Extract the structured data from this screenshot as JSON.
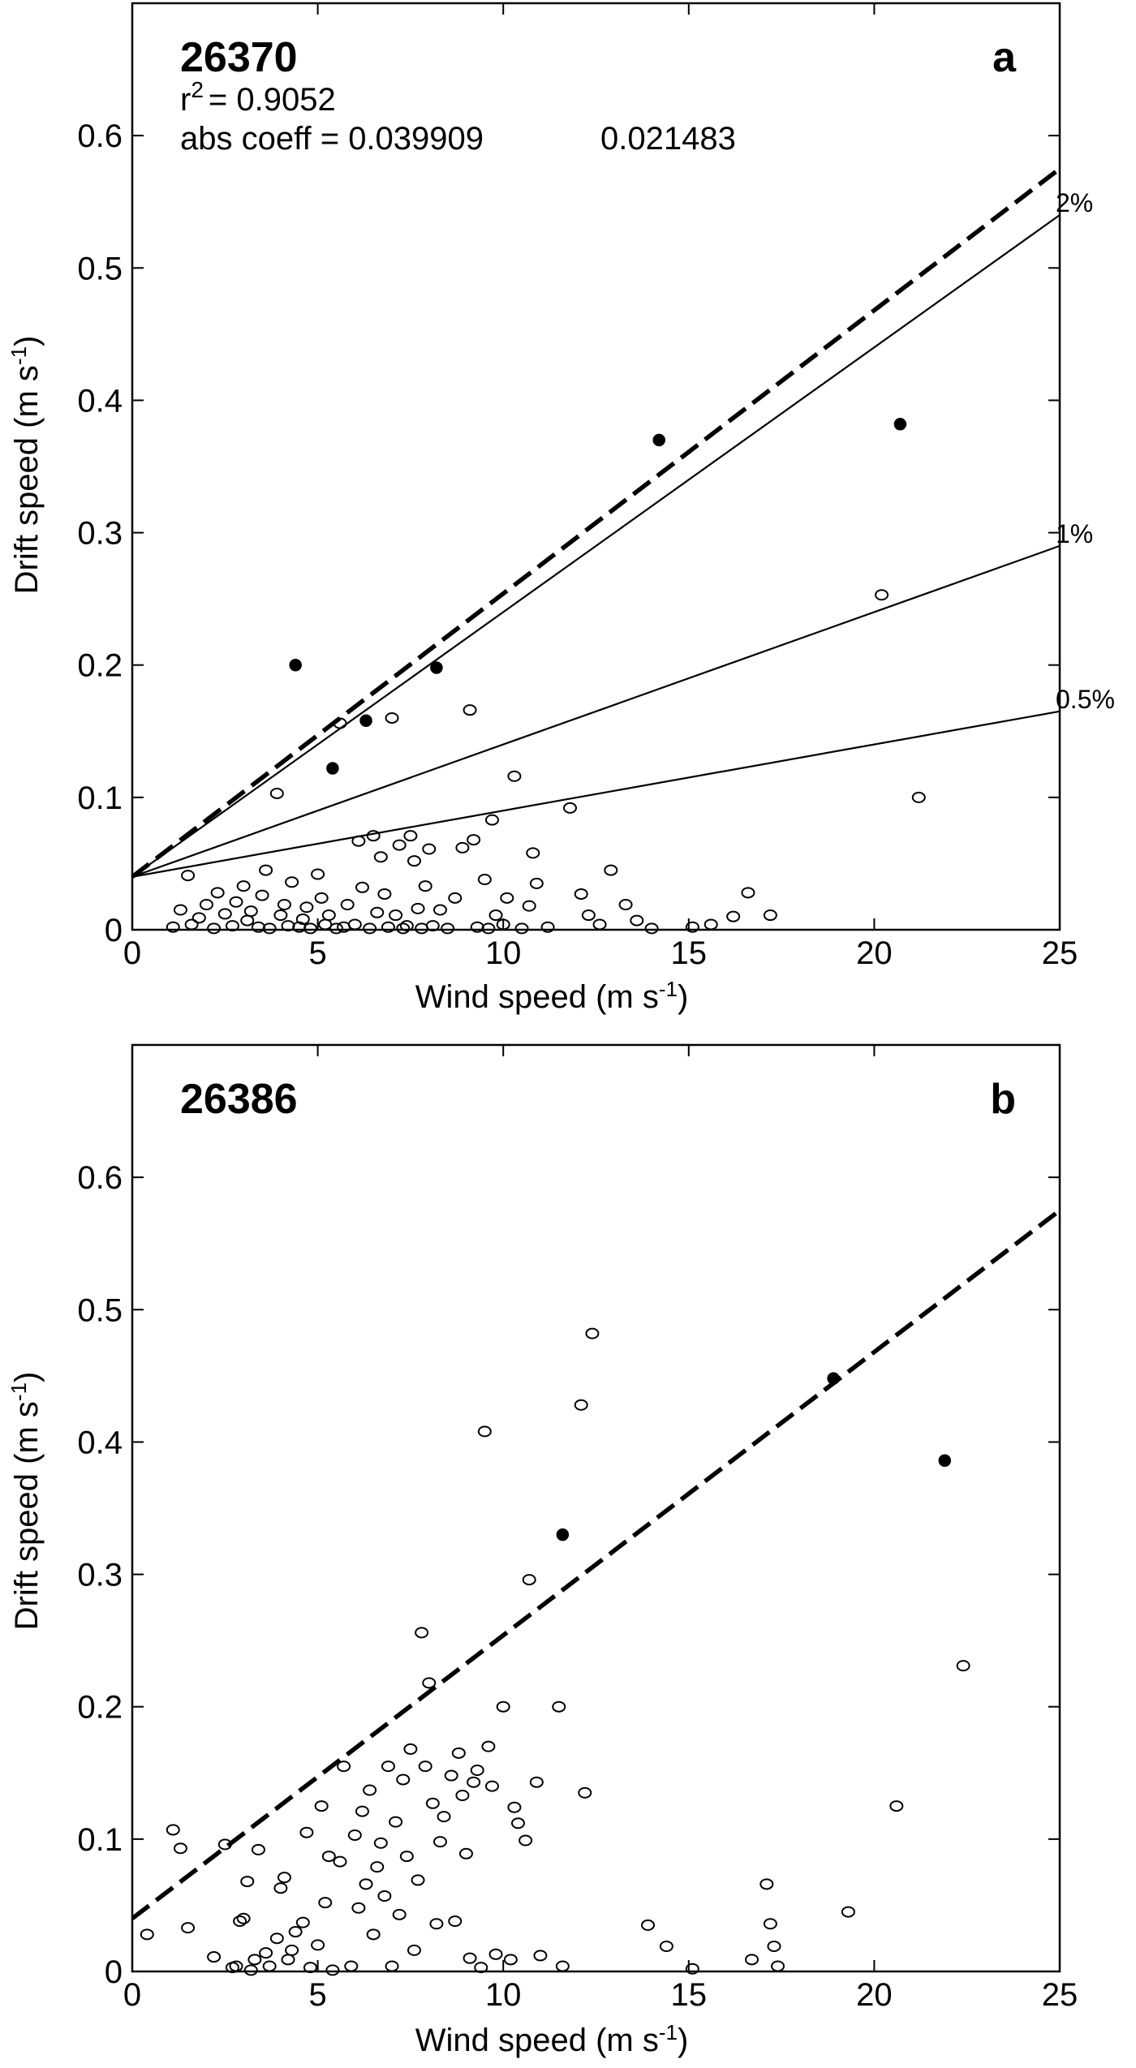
{
  "chart_data": [
    {
      "type": "scatter",
      "panel_letter": "a",
      "station_id": "26370",
      "annotations": {
        "r2_label": "r",
        "r2_exp": "2",
        "r2_value": "= 0.9052",
        "abs_coeff": "abs coeff = 0.039909",
        "abs_coeff_2": "0.021483"
      },
      "xlabel": "Wind speed (m s",
      "xlabel_exp": "-1",
      "xlabel_close": ")",
      "ylabel": "Drift speed (m s",
      "ylabel_exp": "-1",
      "ylabel_close": ")",
      "xlim": [
        0,
        25
      ],
      "ylim": [
        0,
        0.7
      ],
      "xticks": [
        "0",
        "5",
        "10",
        "15",
        "20",
        "25"
      ],
      "yticks": [
        "0",
        "0.1",
        "0.2",
        "0.3",
        "0.4",
        "0.5",
        "0.6"
      ],
      "fit_line": {
        "style": "dashed",
        "intercept": 0.04,
        "slope": 0.0214
      },
      "reference_lines": [
        {
          "label": "2%",
          "intercept": 0.04,
          "slope": 0.02
        },
        {
          "label": "1%",
          "intercept": 0.04,
          "slope": 0.01
        },
        {
          "label": "0.5%",
          "intercept": 0.04,
          "slope": 0.005
        }
      ],
      "series": [
        {
          "marker": "filled",
          "points": [
            [
              4.4,
              0.2
            ],
            [
              5.4,
              0.122
            ],
            [
              6.3,
              0.158
            ],
            [
              8.2,
              0.198
            ],
            [
              14.2,
              0.37
            ],
            [
              20.7,
              0.382
            ]
          ]
        },
        {
          "marker": "open",
          "points": [
            [
              1.1,
              0.002
            ],
            [
              1.3,
              0.015
            ],
            [
              1.5,
              0.041
            ],
            [
              1.6,
              0.004
            ],
            [
              1.8,
              0.009
            ],
            [
              2.0,
              0.019
            ],
            [
              2.2,
              0.001
            ],
            [
              2.3,
              0.028
            ],
            [
              2.5,
              0.012
            ],
            [
              2.7,
              0.003
            ],
            [
              2.8,
              0.021
            ],
            [
              3.0,
              0.033
            ],
            [
              3.1,
              0.007
            ],
            [
              3.2,
              0.014
            ],
            [
              3.4,
              0.002
            ],
            [
              3.5,
              0.026
            ],
            [
              3.6,
              0.045
            ],
            [
              3.7,
              0.001
            ],
            [
              3.9,
              0.103
            ],
            [
              4.0,
              0.011
            ],
            [
              4.1,
              0.019
            ],
            [
              4.2,
              0.003
            ],
            [
              4.3,
              0.036
            ],
            [
              4.5,
              0.002
            ],
            [
              4.6,
              0.008
            ],
            [
              4.7,
              0.017
            ],
            [
              4.8,
              0.001
            ],
            [
              5.0,
              0.042
            ],
            [
              5.1,
              0.024
            ],
            [
              5.2,
              0.004
            ],
            [
              5.3,
              0.011
            ],
            [
              5.5,
              0.001
            ],
            [
              5.6,
              0.156
            ],
            [
              5.7,
              0.002
            ],
            [
              5.8,
              0.019
            ],
            [
              6.0,
              0.004
            ],
            [
              6.1,
              0.067
            ],
            [
              6.2,
              0.032
            ],
            [
              6.4,
              0.001
            ],
            [
              6.5,
              0.071
            ],
            [
              6.6,
              0.013
            ],
            [
              6.7,
              0.055
            ],
            [
              6.8,
              0.027
            ],
            [
              6.9,
              0.002
            ],
            [
              7.0,
              0.16
            ],
            [
              7.1,
              0.011
            ],
            [
              7.2,
              0.064
            ],
            [
              7.3,
              0.001
            ],
            [
              7.4,
              0.003
            ],
            [
              7.5,
              0.071
            ],
            [
              7.6,
              0.052
            ],
            [
              7.7,
              0.016
            ],
            [
              7.8,
              0.001
            ],
            [
              7.9,
              0.033
            ],
            [
              8.0,
              0.061
            ],
            [
              8.1,
              0.003
            ],
            [
              8.3,
              0.015
            ],
            [
              8.5,
              0.001
            ],
            [
              8.7,
              0.024
            ],
            [
              8.9,
              0.062
            ],
            [
              9.1,
              0.166
            ],
            [
              9.2,
              0.068
            ],
            [
              9.3,
              0.002
            ],
            [
              9.5,
              0.038
            ],
            [
              9.6,
              0.001
            ],
            [
              9.7,
              0.083
            ],
            [
              9.8,
              0.011
            ],
            [
              10.0,
              0.004
            ],
            [
              10.1,
              0.024
            ],
            [
              10.3,
              0.116
            ],
            [
              10.5,
              0.001
            ],
            [
              10.7,
              0.018
            ],
            [
              10.8,
              0.058
            ],
            [
              10.9,
              0.035
            ],
            [
              11.2,
              0.002
            ],
            [
              11.8,
              0.092
            ],
            [
              12.1,
              0.027
            ],
            [
              12.3,
              0.011
            ],
            [
              12.6,
              0.004
            ],
            [
              12.9,
              0.045
            ],
            [
              13.3,
              0.019
            ],
            [
              13.6,
              0.007
            ],
            [
              14.0,
              0.001
            ],
            [
              15.1,
              0.002
            ],
            [
              15.6,
              0.004
            ],
            [
              16.2,
              0.01
            ],
            [
              16.6,
              0.028
            ],
            [
              17.2,
              0.011
            ],
            [
              20.2,
              0.253
            ],
            [
              21.2,
              0.1
            ]
          ]
        }
      ]
    },
    {
      "type": "scatter",
      "panel_letter": "b",
      "station_id": "26386",
      "xlabel": "Wind speed (m s",
      "xlabel_exp": "-1",
      "xlabel_close": ")",
      "ylabel": "Drift speed (m s",
      "ylabel_exp": "-1",
      "ylabel_close": ")",
      "xlim": [
        0,
        25
      ],
      "ylim": [
        0,
        0.7
      ],
      "xticks": [
        "0",
        "5",
        "10",
        "15",
        "20",
        "25"
      ],
      "yticks": [
        "0",
        "0.1",
        "0.2",
        "0.3",
        "0.4",
        "0.5",
        "0.6"
      ],
      "fit_line": {
        "style": "dashed",
        "intercept": 0.04,
        "slope": 0.0214
      },
      "reference_lines": [],
      "series": [
        {
          "marker": "filled",
          "points": [
            [
              11.6,
              0.33
            ],
            [
              18.9,
              0.448
            ],
            [
              21.9,
              0.386
            ]
          ]
        },
        {
          "marker": "open",
          "points": [
            [
              0.4,
              0.028
            ],
            [
              1.1,
              0.107
            ],
            [
              1.3,
              0.093
            ],
            [
              1.5,
              0.033
            ],
            [
              2.2,
              0.011
            ],
            [
              2.5,
              0.096
            ],
            [
              2.7,
              0.003
            ],
            [
              2.8,
              0.004
            ],
            [
              2.9,
              0.038
            ],
            [
              3.0,
              0.04
            ],
            [
              3.1,
              0.068
            ],
            [
              3.2,
              0.001
            ],
            [
              3.3,
              0.009
            ],
            [
              3.4,
              0.092
            ],
            [
              3.6,
              0.014
            ],
            [
              3.7,
              0.004
            ],
            [
              3.9,
              0.025
            ],
            [
              4.0,
              0.063
            ],
            [
              4.1,
              0.071
            ],
            [
              4.2,
              0.009
            ],
            [
              4.3,
              0.016
            ],
            [
              4.4,
              0.03
            ],
            [
              4.6,
              0.037
            ],
            [
              4.7,
              0.105
            ],
            [
              4.8,
              0.003
            ],
            [
              5.0,
              0.02
            ],
            [
              5.1,
              0.125
            ],
            [
              5.2,
              0.052
            ],
            [
              5.3,
              0.087
            ],
            [
              5.4,
              0.001
            ],
            [
              5.6,
              0.083
            ],
            [
              5.7,
              0.155
            ],
            [
              5.9,
              0.004
            ],
            [
              6.0,
              0.103
            ],
            [
              6.1,
              0.048
            ],
            [
              6.2,
              0.121
            ],
            [
              6.3,
              0.066
            ],
            [
              6.4,
              0.137
            ],
            [
              6.5,
              0.028
            ],
            [
              6.6,
              0.079
            ],
            [
              6.7,
              0.097
            ],
            [
              6.8,
              0.057
            ],
            [
              6.9,
              0.155
            ],
            [
              7.0,
              0.004
            ],
            [
              7.1,
              0.113
            ],
            [
              7.2,
              0.043
            ],
            [
              7.3,
              0.145
            ],
            [
              7.4,
              0.087
            ],
            [
              7.5,
              0.168
            ],
            [
              7.6,
              0.016
            ],
            [
              7.7,
              0.069
            ],
            [
              7.8,
              0.256
            ],
            [
              7.9,
              0.155
            ],
            [
              8.0,
              0.218
            ],
            [
              8.1,
              0.127
            ],
            [
              8.2,
              0.036
            ],
            [
              8.3,
              0.098
            ],
            [
              8.4,
              0.117
            ],
            [
              8.6,
              0.148
            ],
            [
              8.7,
              0.038
            ],
            [
              8.8,
              0.165
            ],
            [
              8.9,
              0.133
            ],
            [
              9.0,
              0.089
            ],
            [
              9.1,
              0.01
            ],
            [
              9.2,
              0.143
            ],
            [
              9.3,
              0.152
            ],
            [
              9.4,
              0.003
            ],
            [
              9.5,
              0.408
            ],
            [
              9.6,
              0.17
            ],
            [
              9.7,
              0.14
            ],
            [
              9.8,
              0.013
            ],
            [
              10.0,
              0.2
            ],
            [
              10.2,
              0.009
            ],
            [
              10.3,
              0.124
            ],
            [
              10.4,
              0.112
            ],
            [
              10.6,
              0.099
            ],
            [
              10.7,
              0.296
            ],
            [
              10.9,
              0.143
            ],
            [
              11.0,
              0.012
            ],
            [
              11.5,
              0.2
            ],
            [
              11.6,
              0.004
            ],
            [
              12.1,
              0.428
            ],
            [
              12.2,
              0.135
            ],
            [
              12.4,
              0.482
            ],
            [
              13.9,
              0.035
            ],
            [
              14.4,
              0.019
            ],
            [
              15.1,
              0.002
            ],
            [
              16.7,
              0.009
            ],
            [
              17.1,
              0.066
            ],
            [
              17.2,
              0.036
            ],
            [
              17.3,
              0.019
            ],
            [
              17.4,
              0.004
            ],
            [
              19.3,
              0.045
            ],
            [
              20.6,
              0.125
            ],
            [
              22.4,
              0.231
            ]
          ]
        }
      ]
    }
  ]
}
